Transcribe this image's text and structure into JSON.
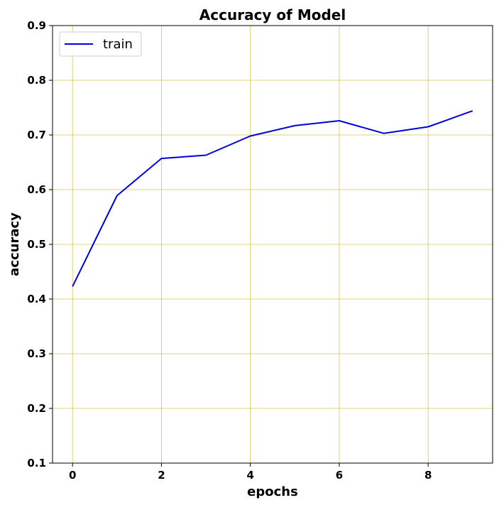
{
  "chart_data": {
    "type": "line",
    "title": "Accuracy of Model",
    "xlabel": "epochs",
    "ylabel": "accuracy",
    "xlim": [
      -0.45,
      9.45
    ],
    "ylim": [
      0.1,
      0.9
    ],
    "xticks": [
      0,
      2,
      4,
      6,
      8
    ],
    "xtick_labels": [
      "0",
      "2",
      "4",
      "6",
      "8"
    ],
    "yticks": [
      0.1,
      0.2,
      0.3,
      0.4,
      0.5,
      0.6,
      0.7,
      0.8,
      0.9
    ],
    "ytick_labels": [
      "0.1",
      "0.2",
      "0.3",
      "0.4",
      "0.5",
      "0.6",
      "0.7",
      "0.8",
      "0.9"
    ],
    "grid": true,
    "grid_color": "#d4c84a",
    "legend_position": "top-left",
    "series": [
      {
        "name": "train",
        "color": "#0000dd",
        "x": [
          0,
          1,
          2,
          3,
          4,
          5,
          6,
          7,
          8,
          9
        ],
        "values": [
          0.423,
          0.589,
          0.657,
          0.663,
          0.698,
          0.717,
          0.726,
          0.703,
          0.715,
          0.744
        ]
      }
    ]
  }
}
